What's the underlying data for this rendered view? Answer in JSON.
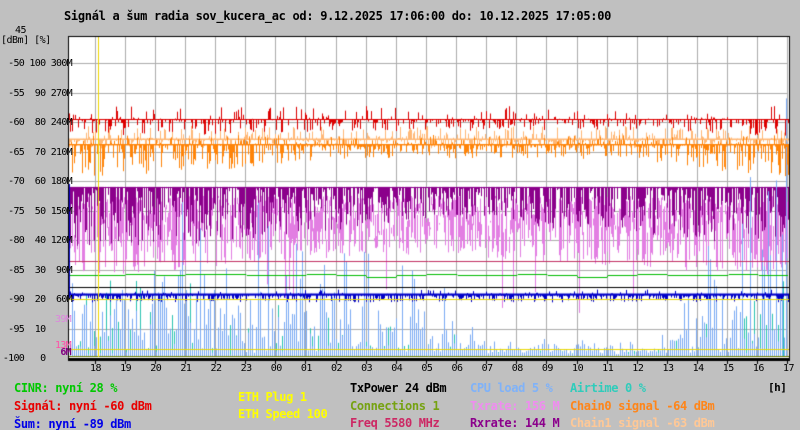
{
  "title": "Signál a šum radia sov_kucera_ac od: 9.12.2025 17:06:00 do: 10.12.2025 17:05:00",
  "axes": {
    "top_value": "45",
    "unit_label": "[dBm] [%]",
    "hour_unit": "[h]",
    "left_rows": [
      " -50 100 300M",
      " -55  90 270M",
      " -60  80 240M",
      " -65  70 210M",
      " -70  60 180M",
      " -75  50 150M",
      " -80  40 120M",
      " -85  30  90M",
      " -90  20  60M",
      " -95  10     ",
      "-100   0     "
    ],
    "rate_labels": [
      {
        "text": "39M",
        "color": "#DD86DD",
        "mbit": 39
      },
      {
        "text": "13M",
        "color": "#FF4FA7",
        "mbit": 13
      },
      {
        "text": "6M",
        "color": "#800080",
        "mbit": 6
      }
    ],
    "hours": [
      "18",
      "19",
      "20",
      "21",
      "22",
      "23",
      "00",
      "01",
      "02",
      "03",
      "04",
      "05",
      "06",
      "07",
      "08",
      "09",
      "10",
      "11",
      "12",
      "13",
      "14",
      "15",
      "16",
      "17"
    ]
  },
  "legend": {
    "items": [
      {
        "id": "cinr",
        "text": "CINR: nyní 28 %",
        "color": "#00C800"
      },
      {
        "id": "signal",
        "text": "Signál: nyní -60 dBm",
        "color": "#E80000"
      },
      {
        "id": "noise",
        "text": "Šum: nyní -89 dBm",
        "color": "#0000E8"
      },
      {
        "id": "eth_plug",
        "text": "ETH Plug 1",
        "color": "#FFFF00"
      },
      {
        "id": "eth_speed",
        "text": "ETH Speed 100",
        "color": "#FFFF00"
      },
      {
        "id": "txpower",
        "text": "TxPower 24 dBm",
        "color": "#000000"
      },
      {
        "id": "connections",
        "text": "Connections 1",
        "color": "#76A212"
      },
      {
        "id": "freq",
        "text": "Freq 5580 MHz",
        "color": "#CC2864"
      },
      {
        "id": "cpu",
        "text": "CPU load 5 %",
        "color": "#7FB2F9"
      },
      {
        "id": "txrate",
        "text": "Txrate: 156 M",
        "color": "#F08CF0"
      },
      {
        "id": "rxrate",
        "text": "Rxrate: 144 M",
        "color": "#8B008B"
      },
      {
        "id": "airtime",
        "text": "Airtime 0 %",
        "color": "#2FCCBB"
      },
      {
        "id": "chain0",
        "text": "Chain0 signal -64 dBm",
        "color": "#FF8519"
      },
      {
        "id": "chain1",
        "text": "Chain1 signal -63 dBm",
        "color": "#FFC896"
      }
    ]
  },
  "chart_data": {
    "type": "line",
    "title": "Signál a šum radia sov_kucera_ac",
    "time_start": "9.12.2025 17:06:00",
    "time_end": "10.12.2025 17:05:00",
    "x_axis": {
      "unit": "h",
      "labels": [
        "18",
        "19",
        "20",
        "21",
        "22",
        "23",
        "00",
        "01",
        "02",
        "03",
        "04",
        "05",
        "06",
        "07",
        "08",
        "09",
        "10",
        "11",
        "12",
        "13",
        "14",
        "15",
        "16",
        "17"
      ]
    },
    "y_axes": [
      {
        "unit": "dBm",
        "range": [
          -100,
          -45
        ]
      },
      {
        "unit": "%",
        "range": [
          0,
          110
        ]
      },
      {
        "unit": "Mbit",
        "range": [
          0,
          330
        ]
      }
    ],
    "series": [
      {
        "id": "signal",
        "name": "Signál",
        "now": "-60 dBm",
        "color": "#DD0000",
        "axis": "dbm",
        "style": "band",
        "base": -59.5,
        "hourly_min": [
          -62,
          -62,
          -62.2,
          -62.2,
          -62,
          -62,
          -61.6,
          -61.6,
          -61.6,
          -61.4,
          -61.4,
          -61.4,
          -61.4,
          -61.4,
          -61.2,
          -61.2,
          -61.2,
          -61.2,
          -61.2,
          -61.2,
          -61.3,
          -61.6,
          -62,
          -62.2,
          -62.2
        ],
        "hourly_max": -57.3
      },
      {
        "id": "chain1",
        "name": "Chain1 signal",
        "now": "-63 dBm",
        "color": "#FFB876",
        "axis": "dbm",
        "style": "band",
        "base": -62.8,
        "hourly_min": -64.3,
        "hourly_max": -60.6
      },
      {
        "id": "chain0",
        "name": "Chain0 signal",
        "now": "-64 dBm",
        "color": "#FF8408",
        "axis": "dbm",
        "style": "band",
        "base": -63.8,
        "hourly_min": [
          -69,
          -69,
          -69,
          -68.5,
          -68,
          -68,
          -67.5,
          -67,
          -66.5,
          -66.5,
          -66,
          -66,
          -66,
          -66,
          -66,
          -66,
          -66,
          -66.2,
          -66.5,
          -66.5,
          -67,
          -68,
          -68.5,
          -69,
          -69
        ],
        "hourly_max": -62.2
      },
      {
        "id": "rxrate",
        "name": "Rxrate",
        "now": "144 M",
        "color": "#8B008B",
        "axis": "mbit",
        "style": "rate-top",
        "top": 174,
        "hourly_min": [
          115,
          112,
          112,
          112,
          115,
          118,
          120,
          122,
          125,
          130,
          135,
          138,
          140,
          140,
          138,
          135,
          132,
          130,
          128,
          126,
          124,
          120,
          115,
          112,
          112
        ]
      },
      {
        "id": "txrate",
        "name": "Txrate",
        "now": "156 M",
        "color": "#E27EE2",
        "axis": "mbit",
        "style": "rate-band",
        "hi": 165,
        "hourly_min": [
          85,
          85,
          85,
          88,
          90,
          92,
          95,
          98,
          100,
          102,
          104,
          105,
          105,
          104,
          102,
          100,
          98,
          96,
          94,
          92,
          90,
          88,
          86,
          85,
          85
        ]
      },
      {
        "id": "cpu",
        "name": "CPU load",
        "now": "5 %",
        "color": "#7AAAF4",
        "axis": "pct",
        "style": "bars",
        "floor": 2,
        "hourly_max": [
          50,
          52,
          56,
          56,
          55,
          54,
          52,
          50,
          46,
          40,
          36,
          32,
          28,
          22,
          6,
          5,
          5,
          5,
          5,
          5,
          6,
          30,
          55,
          62,
          90
        ]
      },
      {
        "id": "airtime",
        "name": "Airtime",
        "now": "0 %",
        "color": "#2BC4B2",
        "axis": "pct",
        "style": "bars",
        "floor": 0.8,
        "hourly_max": [
          24,
          26,
          28,
          28,
          27,
          26,
          25,
          23,
          20,
          16,
          13,
          11,
          9,
          7,
          3,
          2,
          2,
          2,
          2,
          2,
          3,
          12,
          22,
          26,
          30
        ]
      },
      {
        "id": "noise",
        "name": "Šum",
        "now": "-89 dBm",
        "color": "#0000C8",
        "axis": "dbm",
        "style": "band-heavy",
        "base": -89.2,
        "hourly_min": -90.4,
        "hourly_max": -88.4,
        "startup_spike": -70.5
      },
      {
        "id": "cinr",
        "name": "CINR",
        "now": "28 %",
        "color": "#00BB00",
        "axis": "pct",
        "style": "step",
        "hourly": [
          28,
          28,
          28.4,
          28,
          28.4,
          28.4,
          28,
          28,
          28.4,
          28,
          27.6,
          28,
          28.4,
          28,
          28,
          28.4,
          28,
          27.6,
          28,
          28.4,
          28,
          28,
          28.4,
          28,
          28
        ]
      }
    ],
    "const_lines": [
      {
        "id": "freq",
        "label": "Freq 5580 MHz",
        "color": "#C23062",
        "axis": "pct",
        "value": 33
      },
      {
        "id": "txpower",
        "label": "TxPower 24 dBm",
        "color": "#000000",
        "axis": "pct",
        "value": 24
      },
      {
        "id": "eth_speed",
        "label": "ETH Speed 100",
        "color": "#EBD900",
        "axis": "pct",
        "value": 20
      },
      {
        "id": "eth_plug",
        "label": "ETH Plug 1",
        "color": "#EBD900",
        "axis": "pct",
        "value": 3
      },
      {
        "id": "connections",
        "label": "Connections 1",
        "color": "#6F7F00",
        "axis": "pct",
        "value": 0.6
      }
    ],
    "event_marker": {
      "color": "#EFD700",
      "x_hour": 1.0
    }
  }
}
